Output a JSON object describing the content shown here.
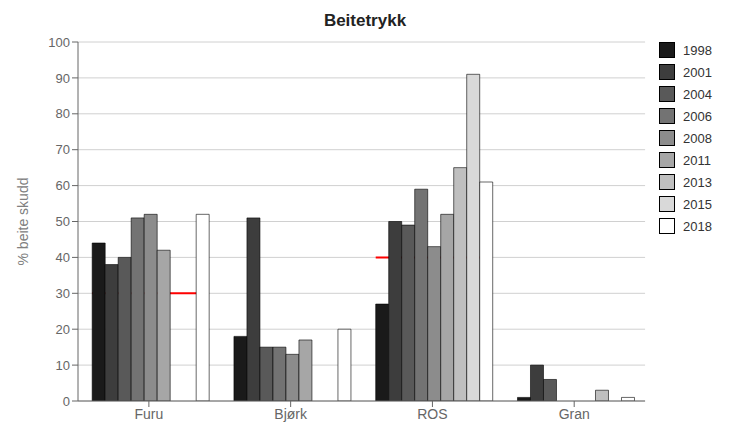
{
  "chart_data": {
    "type": "bar",
    "title": "Beitetrykk",
    "ylabel": "% beite skudd",
    "categories": [
      "Furu",
      "Bjørk",
      "ROS",
      "Gran"
    ],
    "series": [
      {
        "name": "1998",
        "color": "#1a1a1a",
        "values": [
          44,
          18,
          27,
          1
        ]
      },
      {
        "name": "2001",
        "color": "#3d3d3d",
        "values": [
          38,
          51,
          50,
          10
        ]
      },
      {
        "name": "2004",
        "color": "#595959",
        "values": [
          40,
          15,
          49,
          6
        ]
      },
      {
        "name": "2006",
        "color": "#737373",
        "values": [
          51,
          15,
          59,
          null
        ]
      },
      {
        "name": "2008",
        "color": "#8c8c8c",
        "values": [
          52,
          13,
          43,
          null
        ]
      },
      {
        "name": "2011",
        "color": "#a6a6a6",
        "values": [
          42,
          17,
          52,
          null
        ]
      },
      {
        "name": "2013",
        "color": "#bfbfbf",
        "values": [
          null,
          null,
          65,
          3
        ]
      },
      {
        "name": "2015",
        "color": "#d9d9d9",
        "values": [
          null,
          null,
          91,
          null
        ]
      },
      {
        "name": "2018",
        "color": "#ffffff",
        "values": [
          52,
          20,
          61,
          1
        ]
      }
    ],
    "reference_lines": {
      "values": [
        30,
        null,
        40,
        null
      ],
      "color": "#ff0000"
    },
    "ylim": [
      0,
      100
    ],
    "yticks": [
      0,
      10,
      20,
      30,
      40,
      50,
      60,
      70,
      80,
      90,
      100
    ],
    "grid": true,
    "legend": "right"
  }
}
